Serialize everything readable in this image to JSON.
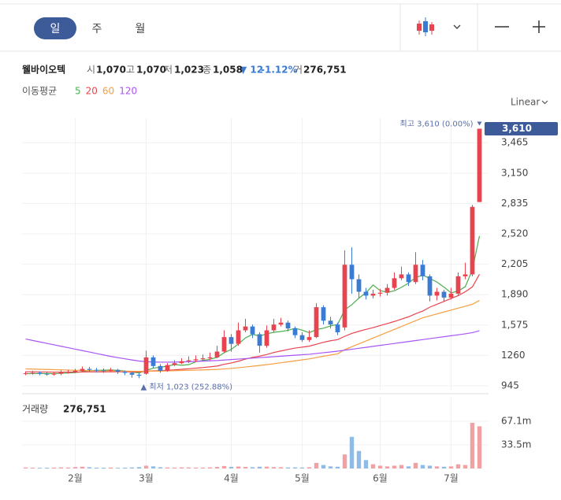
{
  "header": {
    "tabs": [
      "일",
      "주",
      "월"
    ],
    "stock_name": "웰바이오텍",
    "quote": [
      {
        "label": "시",
        "value": "1,070"
      },
      {
        "label": "고",
        "value": "1,070"
      },
      {
        "label": "저",
        "value": "1,023"
      },
      {
        "label": "종",
        "value": "1,058"
      }
    ],
    "change": "▼ 12",
    "change_pct": "-1.12%",
    "volume_label": "거",
    "volume_value": "276,751",
    "ma_label": "이동평균",
    "scale_mode": "Linear"
  },
  "chart_data": {
    "type": "candlestick",
    "categories": [
      null,
      null,
      null,
      null,
      null,
      null,
      null,
      "2월",
      null,
      null,
      null,
      null,
      null,
      null,
      null,
      null,
      null,
      "3월",
      null,
      null,
      null,
      null,
      null,
      null,
      null,
      null,
      null,
      null,
      null,
      "4월",
      null,
      null,
      null,
      null,
      null,
      null,
      null,
      null,
      null,
      "5월",
      null,
      null,
      null,
      null,
      null,
      null,
      null,
      null,
      null,
      null,
      "6월",
      null,
      null,
      null,
      null,
      null,
      null,
      null,
      null,
      null,
      "7월",
      null,
      null,
      null,
      null
    ],
    "open": [
      1070,
      1075,
      1080,
      1070,
      1065,
      1070,
      1085,
      1090,
      1100,
      1120,
      1110,
      1105,
      1100,
      1110,
      1090,
      1080,
      1060,
      1070,
      1240,
      1150,
      1100,
      1160,
      1180,
      1200,
      1210,
      1220,
      1230,
      1240,
      1300,
      1450,
      1380,
      1520,
      1560,
      1480,
      1360,
      1520,
      1580,
      1600,
      1540,
      1470,
      1420,
      1450,
      1760,
      1620,
      1580,
      1550,
      2200,
      2050,
      1920,
      1880,
      1900,
      1910,
      1960,
      2060,
      2100,
      2020,
      2200,
      2080,
      1880,
      1920,
      1860,
      1900,
      2080,
      2100,
      2850
    ],
    "high": [
      1095,
      1100,
      1095,
      1090,
      1090,
      1105,
      1110,
      1120,
      1145,
      1140,
      1130,
      1125,
      1130,
      1120,
      1100,
      1090,
      1075,
      1310,
      1260,
      1170,
      1180,
      1210,
      1230,
      1250,
      1260,
      1270,
      1290,
      1360,
      1520,
      1480,
      1600,
      1640,
      1580,
      1500,
      1570,
      1640,
      1650,
      1620,
      1560,
      1500,
      1520,
      1800,
      1780,
      1660,
      1600,
      2350,
      2380,
      2100,
      1960,
      1940,
      1950,
      2000,
      2120,
      2180,
      2120,
      2330,
      2250,
      2100,
      1960,
      1940,
      1960,
      2120,
      2220,
      2820,
      3610
    ],
    "low": [
      1055,
      1060,
      1055,
      1050,
      1050,
      1055,
      1070,
      1075,
      1090,
      1090,
      1085,
      1080,
      1085,
      1070,
      1055,
      1030,
      1023,
      1060,
      1130,
      1080,
      1090,
      1150,
      1170,
      1180,
      1190,
      1200,
      1210,
      1230,
      1290,
      1300,
      1360,
      1500,
      1440,
      1290,
      1340,
      1500,
      1560,
      1510,
      1440,
      1400,
      1400,
      1440,
      1580,
      1540,
      1470,
      1520,
      1900,
      1850,
      1840,
      1850,
      1870,
      1880,
      1940,
      2040,
      1980,
      2000,
      2040,
      1820,
      1830,
      1820,
      1840,
      1880,
      2050,
      2080,
      2850
    ],
    "close": [
      1075,
      1080,
      1070,
      1065,
      1070,
      1085,
      1090,
      1100,
      1120,
      1110,
      1105,
      1100,
      1110,
      1090,
      1080,
      1060,
      1050,
      1240,
      1150,
      1100,
      1160,
      1180,
      1200,
      1210,
      1220,
      1230,
      1240,
      1300,
      1450,
      1380,
      1520,
      1560,
      1480,
      1360,
      1520,
      1580,
      1600,
      1540,
      1470,
      1420,
      1450,
      1760,
      1620,
      1580,
      1500,
      2200,
      2050,
      1920,
      1880,
      1900,
      1910,
      1960,
      2060,
      2100,
      2020,
      2200,
      2080,
      1880,
      1920,
      1860,
      1900,
      2080,
      2100,
      2800,
      3610
    ],
    "up_color": "#e8444f",
    "down_color": "#3b7bd4",
    "moving_averages": [
      {
        "name": "5",
        "color": "#4caf50",
        "values": [
          1070,
          1072,
          1073,
          1072,
          1072,
          1074,
          1078,
          1082,
          1093,
          1102,
          1105,
          1107,
          1109,
          1105,
          1099,
          1088,
          1078,
          1104,
          1128,
          1138,
          1148,
          1166,
          1158,
          1164,
          1194,
          1208,
          1220,
          1240,
          1288,
          1322,
          1378,
          1442,
          1478,
          1460,
          1484,
          1500,
          1508,
          1520,
          1542,
          1522,
          1496,
          1528,
          1542,
          1566,
          1582,
          1732,
          1786,
          1854,
          1910,
          1990,
          1932,
          1914,
          1930,
          1966,
          2010,
          2068,
          2092,
          2058,
          2020,
          1968,
          1908,
          1928,
          1972,
          2148,
          2498
        ]
      },
      {
        "name": "20",
        "color": "#e8444f",
        "values": [
          1090,
          1090,
          1089,
          1088,
          1087,
          1087,
          1087,
          1087,
          1088,
          1089,
          1089,
          1089,
          1090,
          1090,
          1090,
          1089,
          1088,
          1096,
          1100,
          1102,
          1106,
          1110,
          1116,
          1122,
          1128,
          1134,
          1142,
          1150,
          1168,
          1182,
          1200,
          1222,
          1240,
          1252,
          1270,
          1290,
          1306,
          1322,
          1336,
          1346,
          1356,
          1376,
          1396,
          1412,
          1424,
          1458,
          1488,
          1510,
          1530,
          1548,
          1570,
          1590,
          1612,
          1636,
          1660,
          1692,
          1720,
          1760,
          1790,
          1820,
          1850,
          1880,
          1920,
          1970,
          2100
        ]
      },
      {
        "name": "60",
        "color": "#f59e42",
        "values": [
          1120,
          1118,
          1116,
          1114,
          1112,
          1110,
          1108,
          1106,
          1104,
          1102,
          1101,
          1100,
          1099,
          1098,
          1097,
          1096,
          1095,
          1096,
          1097,
          1098,
          1100,
          1102,
          1104,
          1106,
          1108,
          1110,
          1112,
          1115,
          1120,
          1126,
          1132,
          1140,
          1148,
          1156,
          1164,
          1174,
          1184,
          1194,
          1204,
          1214,
          1224,
          1238,
          1252,
          1264,
          1276,
          1320,
          1350,
          1380,
          1410,
          1440,
          1470,
          1500,
          1530,
          1560,
          1590,
          1620,
          1650,
          1670,
          1690,
          1710,
          1730,
          1750,
          1770,
          1790,
          1830
        ]
      },
      {
        "name": "120",
        "color": "#a855f7",
        "values": [
          1430,
          1415,
          1400,
          1385,
          1370,
          1355,
          1340,
          1325,
          1310,
          1295,
          1280,
          1265,
          1250,
          1237,
          1225,
          1213,
          1202,
          1195,
          1192,
          1190,
          1190,
          1191,
          1193,
          1195,
          1198,
          1201,
          1204,
          1207,
          1212,
          1217,
          1222,
          1227,
          1232,
          1237,
          1242,
          1247,
          1252,
          1257,
          1262,
          1267,
          1272,
          1280,
          1288,
          1296,
          1304,
          1314,
          1324,
          1334,
          1344,
          1354,
          1364,
          1374,
          1384,
          1394,
          1404,
          1414,
          1424,
          1434,
          1444,
          1454,
          1464,
          1474,
          1484,
          1496,
          1516
        ]
      }
    ],
    "ylim": [
      904,
      3720
    ],
    "yticks": [
      945,
      1260,
      {
        "value": 1575,
        "label": "1,575"
      },
      {
        "value": 1890,
        "label": "1,890"
      },
      {
        "value": 2205,
        "label": "2,205"
      },
      {
        "value": 2520,
        "label": "2,520"
      },
      {
        "value": 2835,
        "label": "2,835"
      },
      {
        "value": 3150,
        "label": "3,150"
      },
      {
        "value": 3465,
        "label": "3,465"
      }
    ],
    "grid": true,
    "last_price": {
      "value": 3610,
      "label": "3,610"
    },
    "high_annotation": {
      "text": "최고 3,610 (0.00%)",
      "index": 64,
      "value": 3610
    },
    "low_annotation": {
      "text": "▲ 최저 1,023 (252.88%)",
      "index": 16,
      "value": 1023
    },
    "volume": {
      "label": "거래량",
      "total": "276,751",
      "values": [
        1.5,
        1.2,
        1.0,
        1.1,
        1.3,
        1.6,
        1.4,
        2.0,
        2.5,
        1.8,
        1.2,
        1.1,
        1.4,
        1.0,
        1.2,
        1.5,
        2.0,
        4.0,
        3.0,
        1.8,
        1.5,
        1.4,
        1.6,
        1.5,
        1.3,
        1.4,
        1.6,
        2.2,
        3.5,
        2.4,
        2.8,
        2.2,
        1.8,
        2.5,
        2.6,
        2.0,
        1.8,
        1.5,
        1.6,
        1.4,
        1.8,
        8.0,
        5.0,
        3.0,
        2.5,
        20.0,
        45.0,
        25.0,
        12.0,
        6.0,
        4.0,
        3.0,
        4.0,
        5.0,
        3.0,
        8.0,
        5.0,
        4.0,
        3.0,
        2.5,
        3.0,
        6.0,
        5.0,
        65.0,
        60.0
      ],
      "ylim": [
        0,
        100.7
      ],
      "yticks": [
        {
          "value": 33.5,
          "label": "33.5m"
        },
        {
          "value": 67.1,
          "label": "67.1m"
        }
      ]
    }
  }
}
